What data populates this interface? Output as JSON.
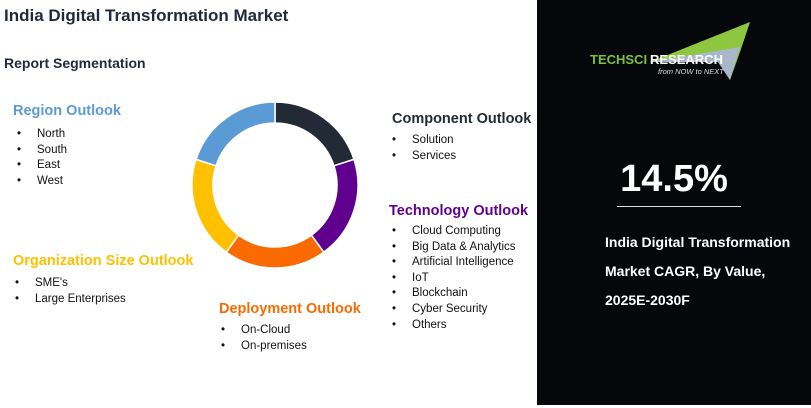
{
  "title": "India Digital Transformation Market",
  "subtitle": "Report Segmentation",
  "segments": [
    {
      "heading": "Region Outlook",
      "color": "#5b9bd5",
      "items": [
        "North",
        "South",
        "East",
        "West"
      ]
    },
    {
      "heading": "Component Outlook",
      "color": "#222a36",
      "items": [
        "Solution",
        "Services"
      ]
    },
    {
      "heading": "Technology Outlook",
      "color": "#5f008f",
      "items": [
        "Cloud Computing",
        "Big Data & Analytics",
        "Artificial Intelligence",
        "IoT",
        "Blockchain",
        "Cyber Security",
        "Others"
      ]
    },
    {
      "heading": "Deployment Outlook",
      "color": "#f96b00",
      "items": [
        "On-Cloud",
        "On-premises"
      ]
    },
    {
      "heading": "Organization Size Outlook",
      "color": "#ffc000",
      "items": [
        "SME's",
        "Large Enterprises"
      ]
    }
  ],
  "donut_colors": [
    "#222a36",
    "#5f008f",
    "#f96b00",
    "#ffc000",
    "#5b9bd5"
  ],
  "panel": {
    "logo_text": "TECHSCI RESEARCH",
    "logo_tagline": "from NOW to NEXT",
    "cagr": "14.5%",
    "desc_lines": [
      "India Digital Transformation",
      "Market CAGR, By Value,",
      "2025E-2030F"
    ]
  }
}
